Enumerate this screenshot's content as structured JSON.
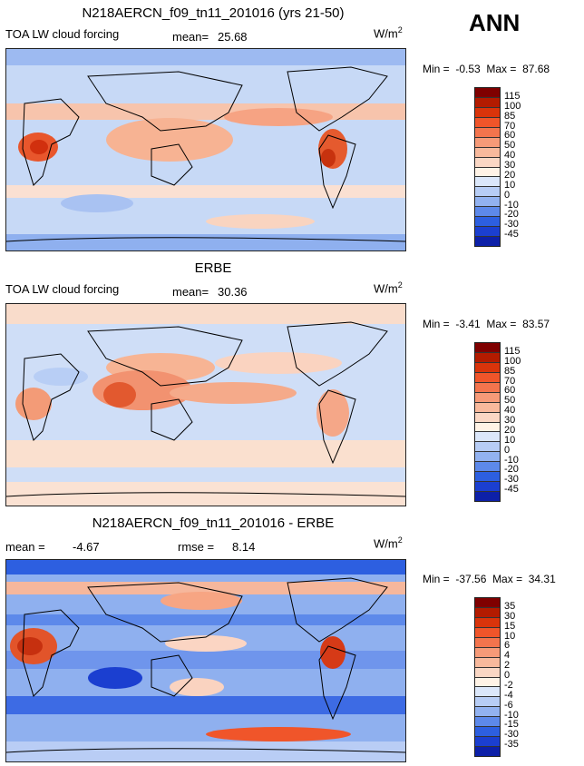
{
  "season": "ANN",
  "panels": [
    {
      "title": "N218AERCN_f09_tn11_201016 (yrs 21-50)",
      "subtitle_left": "TOA LW cloud forcing",
      "stat1": "mean=",
      "stat1_value": "25.68",
      "unit": "W/m",
      "unit_exp": "2",
      "min_label": "Min =",
      "min_value": "-0.53",
      "max_label": "Max =",
      "max_value": "87.68",
      "colorbar": {
        "levels": [
          "115",
          "100",
          "85",
          "70",
          "60",
          "50",
          "40",
          "30",
          "20",
          "10",
          "0",
          "-10",
          "-20",
          "-30",
          "-45"
        ],
        "colors": [
          "#7f0000",
          "#b31b00",
          "#d9340b",
          "#f0552a",
          "#f3744d",
          "#f69a78",
          "#f8b99c",
          "#fad7c4",
          "#fff3e6",
          "#dbe7fa",
          "#b7cdf5",
          "#92b2f0",
          "#5d89ea",
          "#2d5fe0",
          "#1b3fd0",
          "#0d20a8"
        ]
      },
      "map_style": "model"
    },
    {
      "title": "ERBE",
      "subtitle_left": "TOA LW cloud forcing",
      "stat1": "mean=",
      "stat1_value": "30.36",
      "unit": "W/m",
      "unit_exp": "2",
      "min_label": "Min =",
      "min_value": "-3.41",
      "max_label": "Max =",
      "max_value": "83.57",
      "colorbar": {
        "levels": [
          "115",
          "100",
          "85",
          "70",
          "60",
          "50",
          "40",
          "30",
          "20",
          "10",
          "0",
          "-10",
          "-20",
          "-30",
          "-45"
        ],
        "colors": [
          "#7f0000",
          "#b31b00",
          "#d9340b",
          "#f0552a",
          "#f3744d",
          "#f69a78",
          "#f8b99c",
          "#fad7c4",
          "#fff3e6",
          "#dbe7fa",
          "#b7cdf5",
          "#92b2f0",
          "#5d89ea",
          "#2d5fe0",
          "#1b3fd0",
          "#0d20a8"
        ]
      },
      "map_style": "obs"
    },
    {
      "title": "N218AERCN_f09_tn11_201016 - ERBE",
      "subtitle_left": "mean =",
      "subtitle_left_value": "-4.67",
      "stat1": "rmse =",
      "stat1_value": "8.14",
      "unit": "W/m",
      "unit_exp": "2",
      "min_label": "Min =",
      "min_value": "-37.56",
      "max_label": "Max =",
      "max_value": "34.31",
      "colorbar": {
        "levels": [
          "35",
          "30",
          "15",
          "10",
          "6",
          "4",
          "2",
          "0",
          "-2",
          "-4",
          "-6",
          "-10",
          "-15",
          "-30",
          "-35"
        ],
        "colors": [
          "#7f0000",
          "#b31b00",
          "#d9340b",
          "#f0552a",
          "#f3744d",
          "#f69a78",
          "#f8b99c",
          "#fad7c4",
          "#fff3e6",
          "#dbe7fa",
          "#b7cdf5",
          "#92b2f0",
          "#5d89ea",
          "#2d5fe0",
          "#1b3fd0",
          "#0d20a8"
        ]
      },
      "map_style": "diff"
    }
  ]
}
